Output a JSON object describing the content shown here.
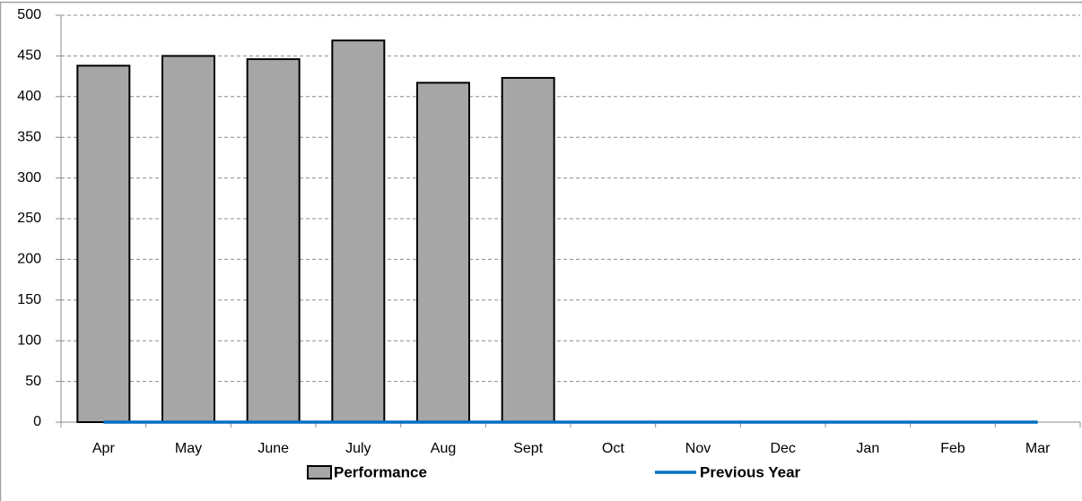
{
  "chart_data": {
    "type": "bar",
    "categories": [
      "Apr",
      "May",
      "June",
      "July",
      "Aug",
      "Sept",
      "Oct",
      "Nov",
      "Dec",
      "Jan",
      "Feb",
      "Mar"
    ],
    "series": [
      {
        "name": "Performance",
        "type": "bar",
        "color": "#a6a6a6",
        "values": [
          438,
          450,
          446,
          469,
          417,
          423,
          null,
          null,
          null,
          null,
          null,
          null
        ]
      },
      {
        "name": "Previous Year",
        "type": "line",
        "color": "#0070c0",
        "values": [
          0,
          0,
          0,
          0,
          0,
          0,
          0,
          0,
          0,
          0,
          0,
          0
        ]
      }
    ],
    "ylim": [
      0,
      500
    ],
    "yticks": [
      0,
      50,
      100,
      150,
      200,
      250,
      300,
      350,
      400,
      450,
      500
    ],
    "grid": true,
    "legend": "bottom"
  }
}
